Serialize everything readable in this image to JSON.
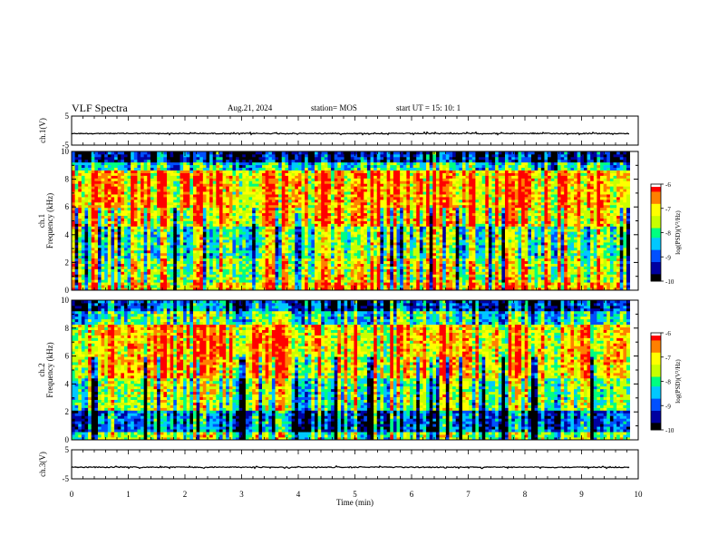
{
  "header": {
    "title": "VLF Spectra",
    "date": "Aug.21, 2024",
    "station": "station= MOS",
    "start": "start  UT =   15: 10: 1"
  },
  "chart_data": [
    {
      "type": "line",
      "name": "ch.1 waveform",
      "ylabel": "ch.1(V)",
      "ylim": [
        -5,
        5
      ],
      "yticks": [
        "5",
        "-5"
      ],
      "baseline": -1,
      "xlim": [
        0,
        9.85
      ]
    },
    {
      "type": "heatmap",
      "name": "ch.1 spectrogram",
      "ylabel": "ch.1\nFrequency (kHz)",
      "ylabel_line1": "ch.1",
      "ylabel_line2": "Frequency (kHz)",
      "ylim": [
        0,
        10
      ],
      "yticks": [
        "0",
        "2",
        "4",
        "6",
        "8",
        "10"
      ],
      "xlim": [
        0,
        9.85
      ],
      "colorbar": {
        "label": "log(PSD)(V²/Hz)",
        "range": [
          -10,
          -6
        ],
        "ticks": [
          "-6",
          "-7",
          "-8",
          "-9",
          "-10"
        ]
      }
    },
    {
      "type": "heatmap",
      "name": "ch.2 spectrogram",
      "ylabel_line1": "ch.2",
      "ylabel_line2": "Frequency (kHz)",
      "ylim": [
        0,
        10
      ],
      "yticks": [
        "0",
        "2",
        "4",
        "6",
        "8",
        "10"
      ],
      "xlim": [
        0,
        9.85
      ],
      "colorbar": {
        "label": "log(PSD)(V²/Hz)",
        "range": [
          -10,
          -6
        ],
        "ticks": [
          "-6",
          "-7",
          "-8",
          "-9",
          "-10"
        ]
      }
    },
    {
      "type": "line",
      "name": "ch.3 waveform",
      "ylabel": "ch.3(V)",
      "ylim": [
        -5,
        5
      ],
      "yticks": [
        "5",
        "-5"
      ],
      "baseline": -1,
      "xlim": [
        0,
        9.85
      ]
    }
  ],
  "xaxis": {
    "label": "Time  (min)",
    "ticks": [
      "0",
      "1",
      "2",
      "3",
      "4",
      "5",
      "6",
      "7",
      "8",
      "9",
      "10"
    ],
    "range": [
      0,
      10
    ]
  },
  "colors": {
    "colormap": [
      "#000000",
      "#0000a0",
      "#0050ff",
      "#00c8ff",
      "#00ff80",
      "#c8ff00",
      "#ffff00",
      "#ff8000",
      "#ff0000",
      "#ffffff"
    ]
  }
}
